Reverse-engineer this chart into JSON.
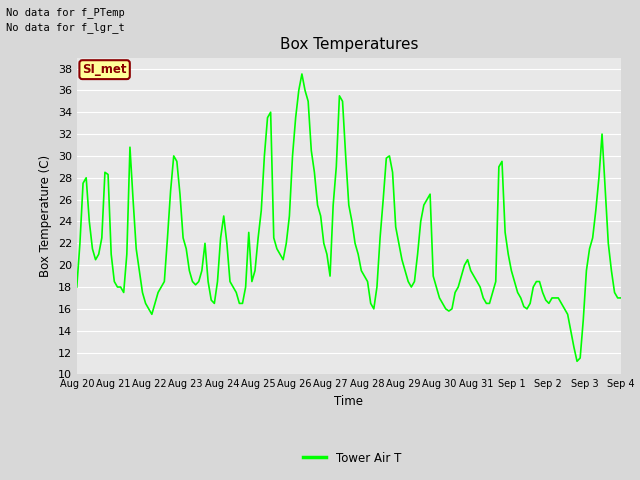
{
  "title": "Box Temperatures",
  "ylabel": "Box Temperature (C)",
  "xlabel": "Time",
  "text_no_data_1": "No data for f_PTemp",
  "text_no_data_2": "No data for f_lgr_t",
  "legend_label": "Tower Air T",
  "legend_box_label": "SI_met",
  "ylim": [
    10,
    39
  ],
  "yticks": [
    10,
    12,
    14,
    16,
    18,
    20,
    22,
    24,
    26,
    28,
    30,
    32,
    34,
    36,
    38
  ],
  "line_color": "#00FF00",
  "line_width": 1.2,
  "fig_bg_color": "#D8D8D8",
  "plot_bg_color": "#E8E8E8",
  "x_labels": [
    "Aug 20",
    "Aug 21",
    "Aug 22",
    "Aug 23",
    "Aug 24",
    "Aug 25",
    "Aug 26",
    "Aug 27",
    "Aug 28",
    "Aug 29",
    "Aug 30",
    "Aug 31",
    "Sep 1",
    "Sep 2",
    "Sep 3",
    "Sep 4"
  ],
  "temperatures": [
    18.0,
    22.0,
    27.5,
    28.0,
    24.0,
    21.5,
    20.5,
    21.0,
    22.5,
    28.5,
    28.3,
    21.0,
    18.5,
    18.0,
    18.0,
    17.5,
    21.0,
    30.8,
    26.0,
    21.5,
    19.5,
    17.5,
    16.5,
    16.0,
    15.5,
    16.5,
    17.5,
    18.0,
    18.5,
    22.5,
    26.8,
    30.0,
    29.5,
    26.5,
    22.5,
    21.5,
    19.5,
    18.5,
    18.2,
    18.5,
    19.5,
    22.0,
    18.5,
    16.8,
    16.5,
    18.5,
    22.5,
    24.5,
    22.0,
    18.5,
    18.0,
    17.5,
    16.5,
    16.5,
    18.0,
    23.0,
    18.5,
    19.5,
    22.5,
    25.0,
    30.0,
    33.5,
    34.0,
    22.5,
    21.5,
    21.0,
    20.5,
    22.0,
    24.5,
    30.0,
    33.5,
    36.0,
    37.5,
    36.0,
    35.0,
    30.5,
    28.5,
    25.5,
    24.5,
    22.0,
    21.0,
    19.0,
    25.5,
    29.0,
    35.5,
    35.0,
    30.0,
    25.5,
    24.0,
    22.0,
    21.0,
    19.5,
    19.0,
    18.5,
    16.5,
    16.0,
    18.0,
    22.5,
    26.0,
    29.8,
    30.0,
    28.5,
    23.5,
    22.0,
    20.5,
    19.5,
    18.5,
    18.0,
    18.5,
    21.0,
    24.0,
    25.5,
    26.0,
    26.5,
    19.0,
    18.0,
    17.0,
    16.5,
    16.0,
    15.8,
    16.0,
    17.5,
    18.0,
    19.0,
    20.0,
    20.5,
    19.5,
    19.0,
    18.5,
    18.0,
    17.0,
    16.5,
    16.5,
    17.5,
    18.5,
    29.0,
    29.5,
    23.0,
    21.0,
    19.5,
    18.5,
    17.5,
    17.0,
    16.2,
    16.0,
    16.5,
    18.0,
    18.5,
    18.5,
    17.5,
    16.8,
    16.5,
    17.0,
    17.0,
    17.0,
    16.5,
    16.0,
    15.5,
    14.0,
    12.5,
    11.2,
    11.5,
    15.0,
    19.5,
    21.5,
    22.5,
    25.0,
    28.0,
    32.0,
    27.0,
    22.0,
    19.5,
    17.5,
    17.0,
    17.0
  ]
}
